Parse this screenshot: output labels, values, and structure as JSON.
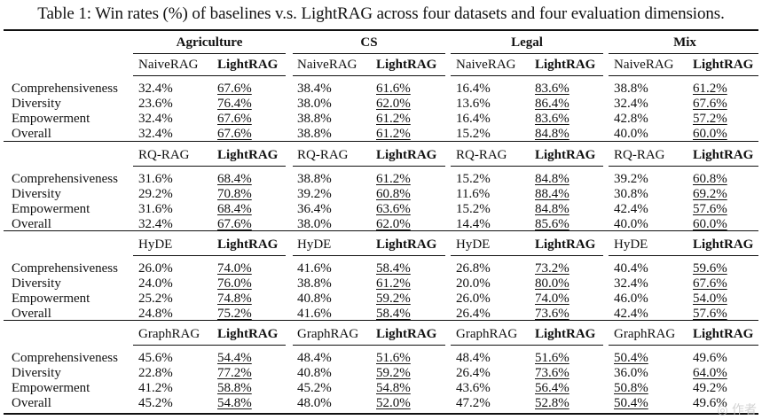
{
  "caption": "Table 1: Win rates (%) of baselines v.s. LightRAG across four datasets and four evaluation dimensions.",
  "datasets": [
    "Agriculture",
    "CS",
    "Legal",
    "Mix"
  ],
  "blocks": [
    {
      "baseline": "NaiveRAG",
      "ours": "LightRAG",
      "rows": [
        {
          "metric": "Comprehensiveness",
          "values": [
            [
              "32.4%",
              "67.6%"
            ],
            [
              "38.4%",
              "61.6%"
            ],
            [
              "16.4%",
              "83.6%"
            ],
            [
              "38.8%",
              "61.2%"
            ]
          ]
        },
        {
          "metric": "Diversity",
          "values": [
            [
              "23.6%",
              "76.4%"
            ],
            [
              "38.0%",
              "62.0%"
            ],
            [
              "13.6%",
              "86.4%"
            ],
            [
              "32.4%",
              "67.6%"
            ]
          ]
        },
        {
          "metric": "Empowerment",
          "values": [
            [
              "32.4%",
              "67.6%"
            ],
            [
              "38.8%",
              "61.2%"
            ],
            [
              "16.4%",
              "83.6%"
            ],
            [
              "42.8%",
              "57.2%"
            ]
          ]
        },
        {
          "metric": "Overall",
          "values": [
            [
              "32.4%",
              "67.6%"
            ],
            [
              "38.8%",
              "61.2%"
            ],
            [
              "15.2%",
              "84.8%"
            ],
            [
              "40.0%",
              "60.0%"
            ]
          ]
        }
      ]
    },
    {
      "baseline": "RQ-RAG",
      "ours": "LightRAG",
      "rows": [
        {
          "metric": "Comprehensiveness",
          "values": [
            [
              "31.6%",
              "68.4%"
            ],
            [
              "38.8%",
              "61.2%"
            ],
            [
              "15.2%",
              "84.8%"
            ],
            [
              "39.2%",
              "60.8%"
            ]
          ]
        },
        {
          "metric": "Diversity",
          "values": [
            [
              "29.2%",
              "70.8%"
            ],
            [
              "39.2%",
              "60.8%"
            ],
            [
              "11.6%",
              "88.4%"
            ],
            [
              "30.8%",
              "69.2%"
            ]
          ]
        },
        {
          "metric": "Empowerment",
          "values": [
            [
              "31.6%",
              "68.4%"
            ],
            [
              "36.4%",
              "63.6%"
            ],
            [
              "15.2%",
              "84.8%"
            ],
            [
              "42.4%",
              "57.6%"
            ]
          ]
        },
        {
          "metric": "Overall",
          "values": [
            [
              "32.4%",
              "67.6%"
            ],
            [
              "38.0%",
              "62.0%"
            ],
            [
              "14.4%",
              "85.6%"
            ],
            [
              "40.0%",
              "60.0%"
            ]
          ]
        }
      ]
    },
    {
      "baseline": "HyDE",
      "ours": "LightRAG",
      "rows": [
        {
          "metric": "Comprehensiveness",
          "values": [
            [
              "26.0%",
              "74.0%"
            ],
            [
              "41.6%",
              "58.4%"
            ],
            [
              "26.8%",
              "73.2%"
            ],
            [
              "40.4%",
              "59.6%"
            ]
          ]
        },
        {
          "metric": "Diversity",
          "values": [
            [
              "24.0%",
              "76.0%"
            ],
            [
              "38.8%",
              "61.2%"
            ],
            [
              "20.0%",
              "80.0%"
            ],
            [
              "32.4%",
              "67.6%"
            ]
          ]
        },
        {
          "metric": "Empowerment",
          "values": [
            [
              "25.2%",
              "74.8%"
            ],
            [
              "40.8%",
              "59.2%"
            ],
            [
              "26.0%",
              "74.0%"
            ],
            [
              "46.0%",
              "54.0%"
            ]
          ]
        },
        {
          "metric": "Overall",
          "values": [
            [
              "24.8%",
              "75.2%"
            ],
            [
              "41.6%",
              "58.4%"
            ],
            [
              "26.4%",
              "73.6%"
            ],
            [
              "42.4%",
              "57.6%"
            ]
          ]
        }
      ]
    },
    {
      "baseline": "GraphRAG",
      "ours": "LightRAG",
      "rows": [
        {
          "metric": "Comprehensiveness",
          "values": [
            [
              "45.6%",
              "54.4%"
            ],
            [
              "48.4%",
              "51.6%"
            ],
            [
              "48.4%",
              "51.6%"
            ],
            [
              "50.4%",
              "49.6%"
            ]
          ]
        },
        {
          "metric": "Diversity",
          "values": [
            [
              "22.8%",
              "77.2%"
            ],
            [
              "40.8%",
              "59.2%"
            ],
            [
              "26.4%",
              "73.6%"
            ],
            [
              "36.0%",
              "64.0%"
            ]
          ]
        },
        {
          "metric": "Empowerment",
          "values": [
            [
              "41.2%",
              "58.8%"
            ],
            [
              "45.2%",
              "54.8%"
            ],
            [
              "43.6%",
              "56.4%"
            ],
            [
              "50.8%",
              "49.2%"
            ]
          ]
        },
        {
          "metric": "Overall",
          "values": [
            [
              "45.2%",
              "54.8%"
            ],
            [
              "48.0%",
              "52.0%"
            ],
            [
              "47.2%",
              "52.8%"
            ],
            [
              "50.4%",
              "49.6%"
            ]
          ]
        }
      ]
    }
  ]
}
